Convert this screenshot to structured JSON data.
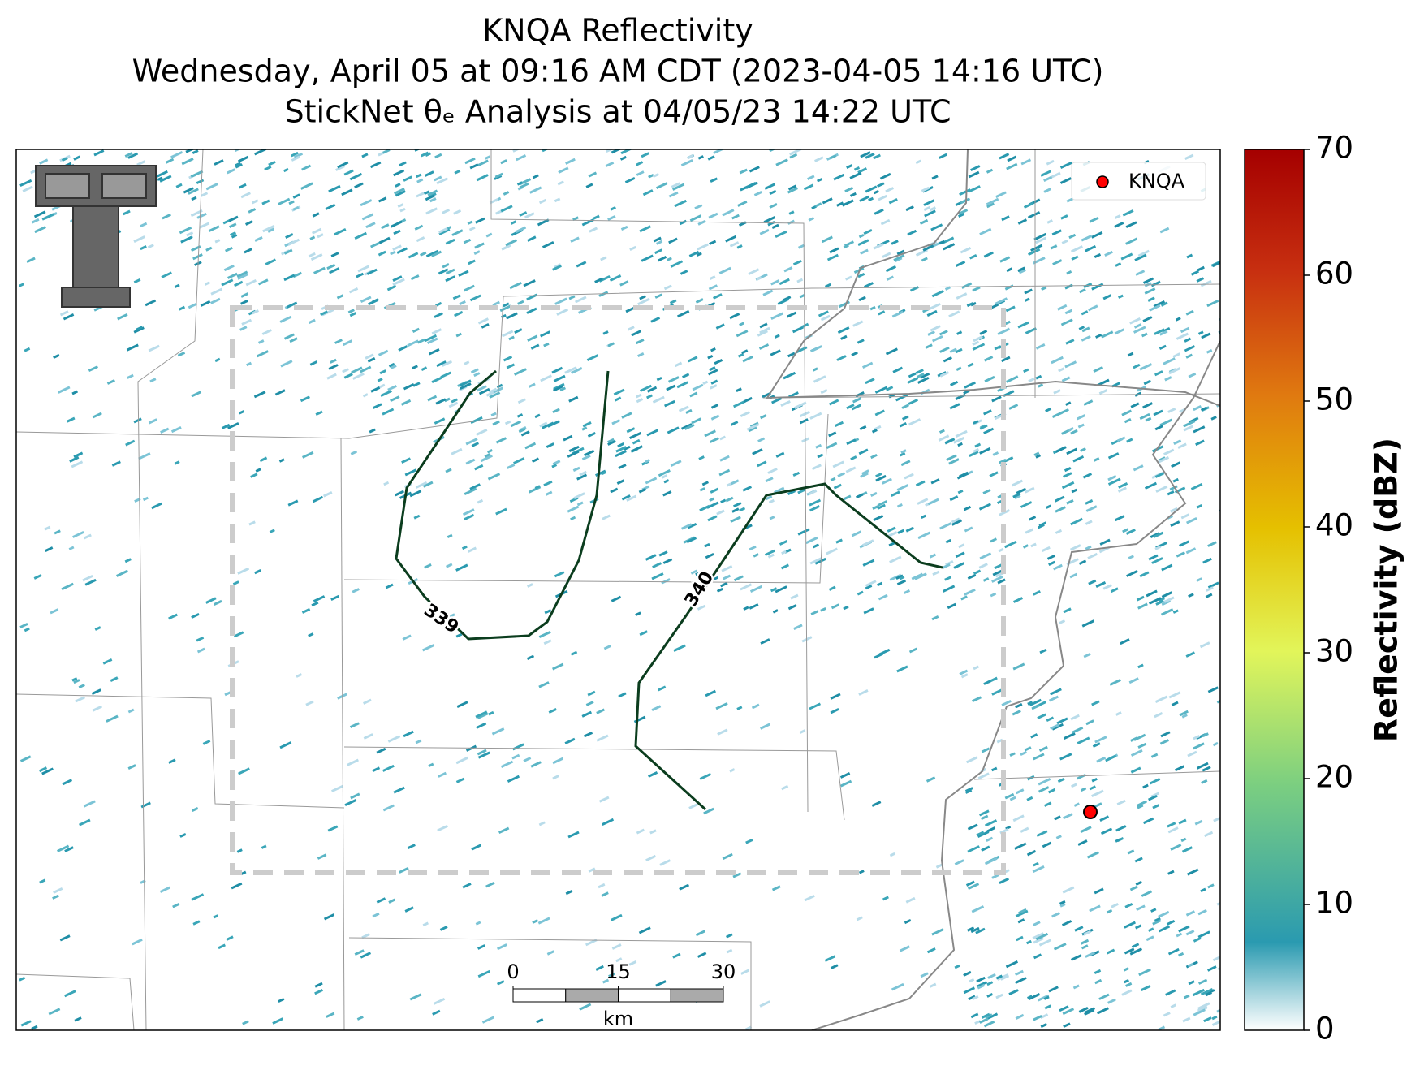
{
  "title_lines": [
    "KNQA Reflectivity",
    "Wednesday, April 05 at 09:16 AM CDT (2023-04-05 14:16 UTC)",
    "StickNet θₑ Analysis at 04/05/23 14:22 UTC"
  ],
  "legend": [
    {
      "label": "KNQA",
      "color": "#ff0000"
    }
  ],
  "contours": [
    {
      "level": 339,
      "label": "339",
      "color": "#0b3d1e"
    },
    {
      "level": 340,
      "label": "340",
      "color": "#0b3d1e"
    }
  ],
  "scale_bar": {
    "ticks": [
      0,
      15,
      30
    ],
    "unit": "km"
  },
  "colorbar": {
    "label": "Reflectivity (dBZ)",
    "lim": [
      0,
      70
    ],
    "ticks": [
      0,
      10,
      20,
      30,
      40,
      50,
      60,
      70
    ]
  }
}
